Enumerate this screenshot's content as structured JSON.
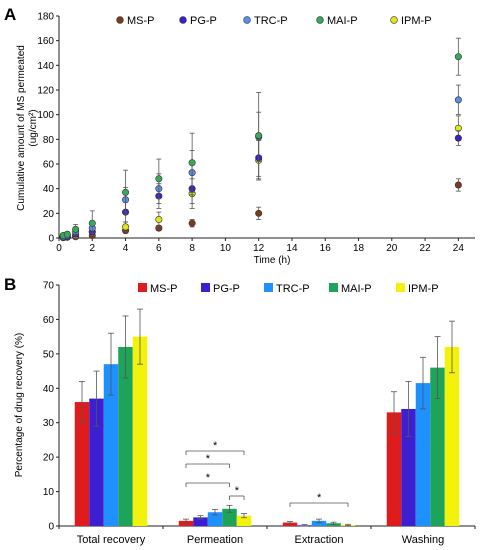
{
  "panels": {
    "a": "A",
    "b": "B"
  },
  "chart_data": [
    {
      "type": "scatter",
      "title": "",
      "xlabel": "Time (h)",
      "ylabel_lines": [
        "Cumulative amount of MS permeated",
        "(ug/cm²)"
      ],
      "xlim": [
        0,
        25
      ],
      "ylim": [
        0,
        180
      ],
      "xticks": [
        0,
        2,
        4,
        6,
        8,
        10,
        12,
        14,
        16,
        18,
        20,
        22,
        24
      ],
      "yticks": [
        0,
        20,
        40,
        60,
        80,
        100,
        120,
        140,
        160,
        180
      ],
      "legend_position": "top",
      "x": [
        0.25,
        0.5,
        1,
        2,
        4,
        6,
        8,
        12,
        24
      ],
      "series": [
        {
          "name": "MS-P",
          "color": "#7a3b1e",
          "values": [
            0.3,
            0.6,
            1,
            2,
            6,
            8,
            12,
            20,
            43
          ],
          "errors": [
            0.2,
            0.3,
            0.5,
            1,
            2,
            2,
            3,
            5,
            5
          ]
        },
        {
          "name": "PG-P",
          "color": "#3b1fd1",
          "values": [
            0.5,
            1,
            3,
            5,
            21,
            34,
            40,
            65,
            81
          ],
          "errors": [
            0.5,
            1,
            2,
            3,
            8,
            10,
            12,
            15,
            6
          ]
        },
        {
          "name": "TRC-P",
          "color": "#5b8def",
          "values": [
            1,
            2,
            5,
            8,
            31,
            40,
            53,
            82,
            112
          ],
          "errors": [
            1,
            2,
            3,
            4,
            10,
            12,
            18,
            20,
            12
          ]
        },
        {
          "name": "MAI-P",
          "color": "#3aa85a",
          "values": [
            2,
            3,
            7,
            12,
            37,
            48,
            61,
            83,
            147
          ],
          "errors": [
            1,
            2,
            4,
            10,
            18,
            16,
            24,
            35,
            15
          ]
        },
        {
          "name": "IPM-P",
          "color": "#e3e31a",
          "values": [
            0.5,
            1,
            2,
            5,
            9,
            15,
            36,
            63,
            89
          ],
          "errors": [
            0.5,
            1,
            1,
            3,
            4,
            6,
            12,
            16,
            10
          ]
        }
      ]
    },
    {
      "type": "bar",
      "title": "",
      "xlabel": "",
      "ylabel": "Percentage of drug recovery (%)",
      "ylim": [
        0,
        70
      ],
      "yticks": [
        0,
        10,
        20,
        30,
        40,
        50,
        60,
        70
      ],
      "legend_position": "top",
      "categories": [
        "Total recovery",
        "Permeation",
        "Extraction",
        "Washing"
      ],
      "series": [
        {
          "name": "MS-P",
          "color": "#e01b1b",
          "values": [
            36,
            1.5,
            1,
            33
          ],
          "errors": [
            6,
            0.5,
            0.3,
            6
          ]
        },
        {
          "name": "PG-P",
          "color": "#3b1fd1",
          "values": [
            37,
            2.5,
            0.2,
            34
          ],
          "errors": [
            8,
            0.5,
            0.2,
            8
          ]
        },
        {
          "name": "TRC-P",
          "color": "#1e90ff",
          "values": [
            47,
            4,
            1.5,
            41.5
          ],
          "errors": [
            9,
            0.8,
            0.5,
            7.5
          ]
        },
        {
          "name": "MAI-P",
          "color": "#1ea35a",
          "values": [
            52,
            5,
            0.8,
            46
          ],
          "errors": [
            9,
            1,
            0.3,
            9
          ]
        },
        {
          "name": "IPM-P",
          "color": "#f2f20a",
          "values": [
            55,
            3,
            0.3,
            52
          ],
          "errors": [
            8,
            0.6,
            0.2,
            7.5
          ]
        }
      ],
      "significance_marks": [
        "*",
        "*",
        "*",
        "*",
        "*"
      ]
    }
  ]
}
